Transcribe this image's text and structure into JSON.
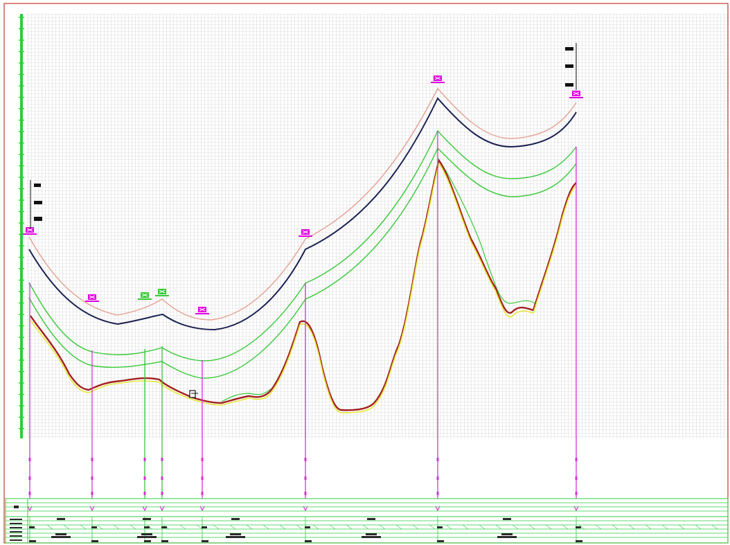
{
  "drawing": {
    "colors": {
      "frame": "#c0392b",
      "grid": "#b9b9b9",
      "ruler": "#2ecc40",
      "ground_line": "#c0392b",
      "formation_line": "#e6e63a",
      "sag_envelope_dark": "#1a2050",
      "sag_envelope_light": "#e3a090",
      "clearance_curves": "#37c837",
      "structure_lines": "#d633d6",
      "structure_lines_alt": "#37c837",
      "tower_markers": "#e000e0",
      "table_lines": "#2ecc40"
    },
    "icons": {
      "tower": "tower-marker-icon",
      "wind_flag": "wind-flag-icon",
      "crossing": "crossing-box-icon"
    }
  }
}
